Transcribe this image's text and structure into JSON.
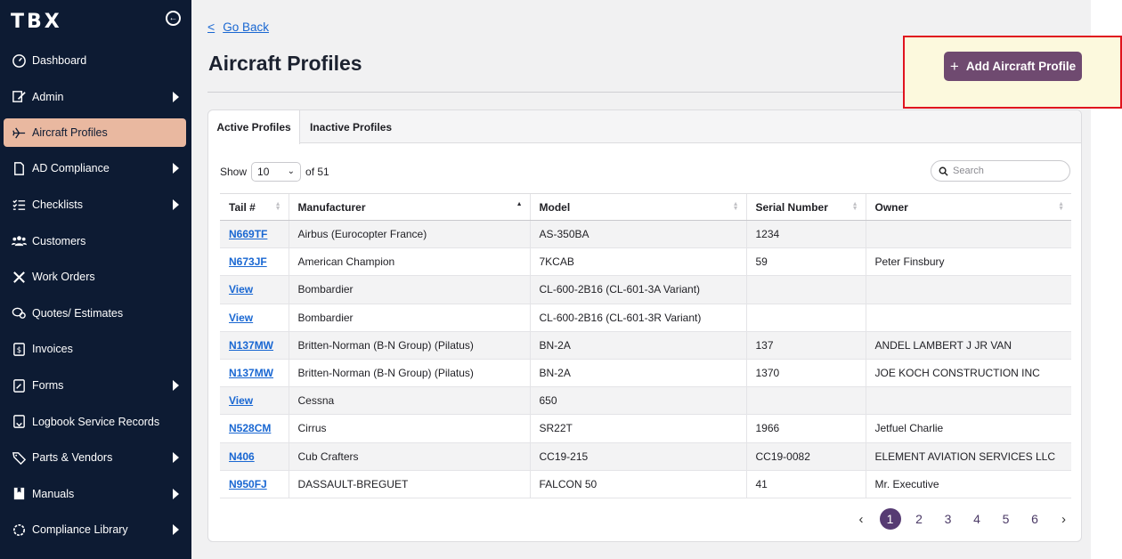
{
  "brand": {
    "logo": "TBX"
  },
  "sidebar": {
    "items": [
      {
        "label": "Dashboard",
        "icon": "dashboard-icon",
        "has_submenu": false
      },
      {
        "label": "Admin",
        "icon": "admin-icon",
        "has_submenu": true
      },
      {
        "label": "Aircraft Profiles",
        "icon": "airplane-icon",
        "has_submenu": false,
        "active": true
      },
      {
        "label": "AD Compliance",
        "icon": "document-icon",
        "has_submenu": true
      },
      {
        "label": "Checklists",
        "icon": "checklist-icon",
        "has_submenu": true
      },
      {
        "label": "Customers",
        "icon": "customers-icon",
        "has_submenu": false
      },
      {
        "label": "Work Orders",
        "icon": "tools-icon",
        "has_submenu": false
      },
      {
        "label": "Quotes/ Estimates",
        "icon": "quotes-icon",
        "has_submenu": false
      },
      {
        "label": "Invoices",
        "icon": "invoice-icon",
        "has_submenu": false
      },
      {
        "label": "Forms",
        "icon": "forms-icon",
        "has_submenu": true
      },
      {
        "label": "Logbook Service Records",
        "icon": "logbook-icon",
        "has_submenu": false
      },
      {
        "label": "Parts & Vendors",
        "icon": "tag-icon",
        "has_submenu": true
      },
      {
        "label": "Manuals",
        "icon": "manual-icon",
        "has_submenu": true
      },
      {
        "label": "Compliance Library",
        "icon": "gear-icon",
        "has_submenu": true
      }
    ]
  },
  "header": {
    "go_back": "Go Back",
    "title": "Aircraft Profiles",
    "add_button": "Add Aircraft Profile"
  },
  "tabs": [
    {
      "label": "Active Profiles",
      "active": true
    },
    {
      "label": "Inactive Profiles",
      "active": false
    }
  ],
  "controls": {
    "show_label": "Show",
    "page_size": "10",
    "of_label": "of 51",
    "search_placeholder": "Search"
  },
  "table": {
    "columns": [
      "Tail #",
      "Manufacturer",
      "Model",
      "Serial Number",
      "Owner"
    ],
    "rows": [
      [
        "N669TF",
        "Airbus (Eurocopter France)",
        "AS-350BA",
        "1234",
        ""
      ],
      [
        "N673JF",
        "American Champion",
        "7KCAB",
        "59",
        "Peter Finsbury"
      ],
      [
        "View",
        "Bombardier",
        "CL-600-2B16 (CL-601-3A Variant)",
        "",
        ""
      ],
      [
        "View",
        "Bombardier",
        "CL-600-2B16 (CL-601-3R Variant)",
        "",
        ""
      ],
      [
        "N137MW",
        "Britten-Norman (B-N Group) (Pilatus)",
        "BN-2A",
        "137",
        "ANDEL LAMBERT J JR VAN"
      ],
      [
        "N137MW",
        "Britten-Norman (B-N Group) (Pilatus)",
        "BN-2A",
        "1370",
        "JOE KOCH CONSTRUCTION INC"
      ],
      [
        "View",
        "Cessna",
        "650",
        "",
        ""
      ],
      [
        "N528CM",
        "Cirrus",
        "SR22T",
        "1966",
        "Jetfuel Charlie"
      ],
      [
        "N406",
        "Cub Crafters",
        "CC19-215",
        "CC19-0082",
        "ELEMENT AVIATION SERVICES LLC"
      ],
      [
        "N950FJ",
        "DASSAULT-BREGUET",
        "FALCON 50",
        "41",
        "Mr. Executive"
      ]
    ]
  },
  "pagination": {
    "prev": "‹",
    "pages": [
      "1",
      "2",
      "3",
      "4",
      "5",
      "6"
    ],
    "current": "1",
    "next": "›"
  },
  "colors": {
    "sidebar_bg": "#0d1b33",
    "active_item": "#e9b8a0",
    "primary_button": "#6f4a70",
    "highlight_border": "#e0141e"
  }
}
